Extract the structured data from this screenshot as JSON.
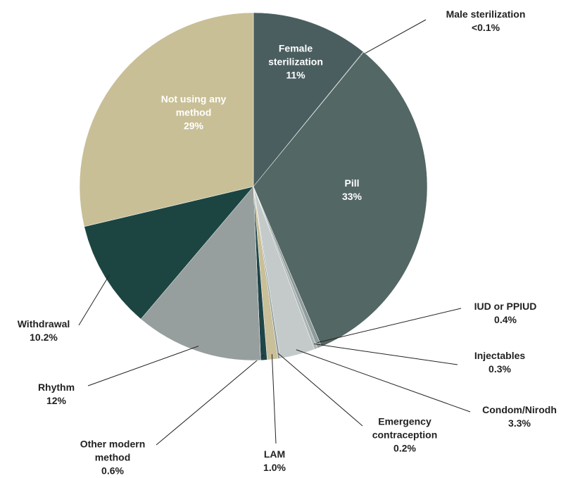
{
  "chart_data": {
    "type": "pie",
    "categories": [
      "Female sterilization",
      "Male sterilization",
      "Pill",
      "IUD or PPIUD",
      "Injectables",
      "Condom/Nirodh",
      "Emergency contraception",
      "LAM",
      "Other modern method",
      "Rhythm",
      "Withdrawal",
      "Not using any method"
    ],
    "values": [
      11,
      0.05,
      33,
      0.4,
      0.3,
      3.3,
      0.2,
      1.0,
      0.6,
      12,
      10.2,
      29
    ],
    "value_labels": [
      "11%",
      "<0.1%",
      "33%",
      "0.4%",
      "0.3%",
      "3.3%",
      "0.2%",
      "1.0%",
      "0.6%",
      "12%",
      "10.2%",
      "29%"
    ],
    "colors": [
      "#4a5e60",
      "#4f6462",
      "#536764",
      "#8f9b9b",
      "#aab3b3",
      "#c4caca",
      "#8f9b9b",
      "#c9bf98",
      "#1f4548",
      "#979f9e",
      "#1c4542",
      "#c8bf97"
    ]
  }
}
